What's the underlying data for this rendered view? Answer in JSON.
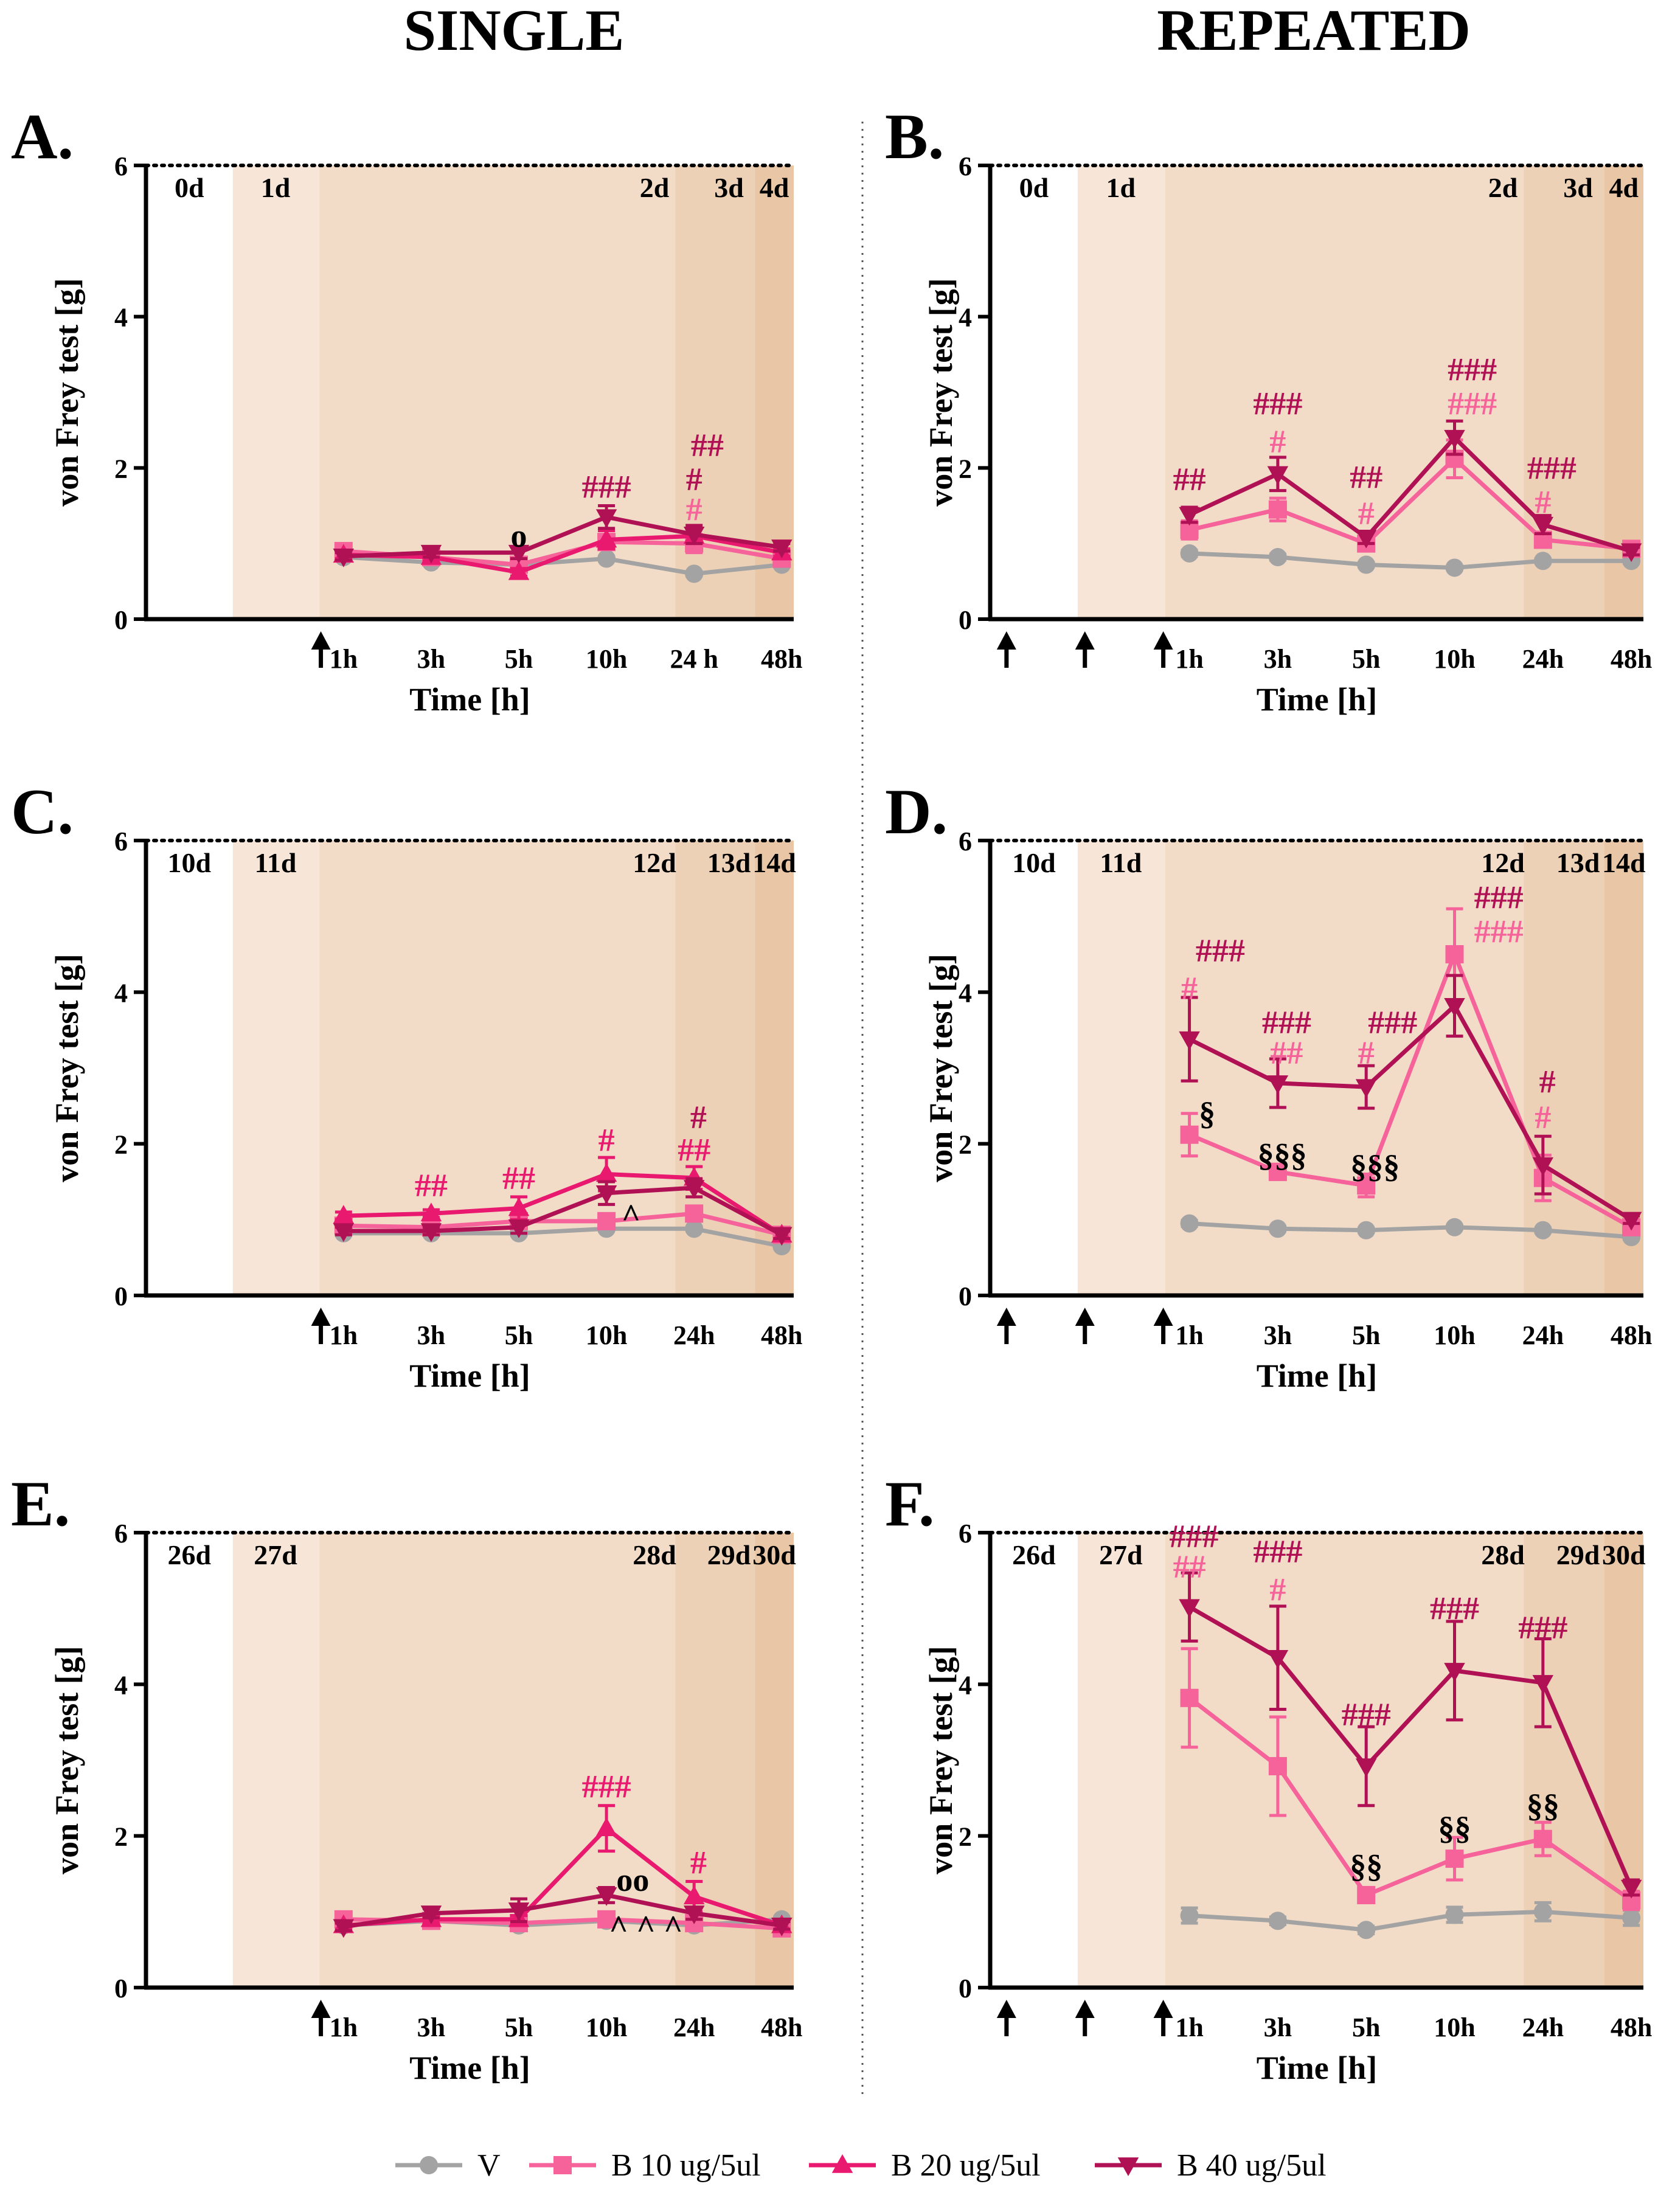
{
  "column_titles": [
    "SINGLE",
    "REPEATED"
  ],
  "colors": {
    "V": "#a3a3a3",
    "B10": "#f5639a",
    "B20": "#e8196e",
    "B40": "#b01155",
    "shade": [
      "#ffffff",
      "#f7e6d7",
      "#f2dcc7",
      "#edd1b6",
      "#e9c6a5"
    ],
    "axis": "#000000"
  },
  "legend": [
    {
      "key": "V",
      "label": "V",
      "marker": "circle"
    },
    {
      "key": "B10",
      "label": "B 10 ug/5ul",
      "marker": "square"
    },
    {
      "key": "B20",
      "label": "B 20 ug/5ul",
      "marker": "triangle-up"
    },
    {
      "key": "B40",
      "label": "B 40 ug/5ul",
      "marker": "triangle-down"
    }
  ],
  "chart_data": [
    {
      "panel": "A.",
      "column": "SINGLE",
      "type": "line",
      "xlabel": "Time [h]",
      "ylabel": "von Frey test [g]",
      "ylim": [
        0,
        6
      ],
      "yticks": [
        "0",
        "2",
        "4",
        "6"
      ],
      "categories": [
        "1h",
        "3h",
        "5h",
        "10h",
        "24 h",
        "48h"
      ],
      "day_labels": [
        "0d",
        "1d",
        "2d",
        "3d",
        "4d"
      ],
      "injections": 1,
      "series": [
        {
          "name": "V",
          "values": [
            0.82,
            0.75,
            0.72,
            0.8,
            0.6,
            0.72
          ],
          "err": [
            0.04,
            0.03,
            0.03,
            0.03,
            0.03,
            0.03
          ]
        },
        {
          "name": "B 10 ug/5ul",
          "values": [
            0.9,
            0.82,
            0.72,
            1.02,
            1.0,
            0.8
          ],
          "err": [
            0.05,
            0.05,
            0.05,
            0.1,
            0.12,
            0.05
          ]
        },
        {
          "name": "B 20 ug/5ul",
          "values": [
            0.85,
            0.82,
            0.62,
            1.05,
            1.1,
            0.88
          ],
          "err": [
            0.05,
            0.05,
            0.05,
            0.12,
            0.1,
            0.05
          ]
        },
        {
          "name": "B 40 ug/5ul",
          "values": [
            0.83,
            0.88,
            0.88,
            1.35,
            1.12,
            0.95
          ],
          "err": [
            0.05,
            0.06,
            0.08,
            0.15,
            0.12,
            0.05
          ]
        }
      ],
      "annotations": [
        {
          "text": "o",
          "x": 2,
          "y": 1.1,
          "color": "#000000"
        },
        {
          "text": "###",
          "x": 3,
          "y": 1.75,
          "color": "#b01155"
        },
        {
          "text": "#",
          "x": 4,
          "y": 1.45,
          "color": "#f5639a"
        },
        {
          "text": "#",
          "x": 4,
          "y": 1.85,
          "color": "#b01155"
        },
        {
          "text": "##",
          "x": 4.15,
          "y": 2.3,
          "color": "#b01155"
        }
      ]
    },
    {
      "panel": "B.",
      "column": "REPEATED",
      "type": "line",
      "xlabel": "Time [h]",
      "ylabel": "von Frey test [g]",
      "ylim": [
        0,
        6
      ],
      "yticks": [
        "0",
        "2",
        "4",
        "6"
      ],
      "categories": [
        "1h",
        "3h",
        "5h",
        "10h",
        "24h",
        "48h"
      ],
      "day_labels": [
        "0d",
        "1d",
        "2d",
        "3d",
        "4d"
      ],
      "injections": 3,
      "series": [
        {
          "name": "V",
          "values": [
            0.87,
            0.82,
            0.72,
            0.68,
            0.77,
            0.77
          ],
          "err": [
            0.04,
            0.04,
            0.03,
            0.03,
            0.03,
            0.03
          ]
        },
        {
          "name": "B 10 ug/5ul",
          "values": [
            1.18,
            1.45,
            1.0,
            2.12,
            1.05,
            0.93
          ],
          "err": [
            0.12,
            0.15,
            0.08,
            0.25,
            0.1,
            0.05
          ]
        },
        {
          "name": "B 40 ug/5ul",
          "values": [
            1.38,
            1.92,
            1.08,
            2.4,
            1.25,
            0.9
          ],
          "err": [
            0.1,
            0.22,
            0.08,
            0.22,
            0.12,
            0.05
          ]
        }
      ],
      "annotations": [
        {
          "text": "##",
          "x": 0,
          "y": 1.85,
          "color": "#b01155"
        },
        {
          "text": "#",
          "x": 1,
          "y": 2.35,
          "color": "#f5639a"
        },
        {
          "text": "###",
          "x": 1,
          "y": 2.85,
          "color": "#b01155"
        },
        {
          "text": "#",
          "x": 2,
          "y": 1.4,
          "color": "#f5639a"
        },
        {
          "text": "##",
          "x": 2,
          "y": 1.88,
          "color": "#b01155"
        },
        {
          "text": "###",
          "x": 3.2,
          "y": 2.85,
          "color": "#f5639a"
        },
        {
          "text": "###",
          "x": 3.2,
          "y": 3.3,
          "color": "#b01155"
        },
        {
          "text": "#",
          "x": 4,
          "y": 1.55,
          "color": "#f5639a"
        },
        {
          "text": "###",
          "x": 4.1,
          "y": 2.0,
          "color": "#b01155"
        }
      ]
    },
    {
      "panel": "C.",
      "column": "SINGLE",
      "type": "line",
      "xlabel": "Time [h]",
      "ylabel": "von Frey test [g]",
      "ylim": [
        0,
        6
      ],
      "yticks": [
        "0",
        "2",
        "4",
        "6"
      ],
      "categories": [
        "1h",
        "3h",
        "5h",
        "10h",
        "24h",
        "48h"
      ],
      "day_labels": [
        "10d",
        "11d",
        "12d",
        "13d",
        "14d"
      ],
      "injections": 1,
      "series": [
        {
          "name": "V",
          "values": [
            0.82,
            0.82,
            0.82,
            0.88,
            0.88,
            0.65
          ],
          "err": [
            0.03,
            0.03,
            0.03,
            0.03,
            0.03,
            0.03
          ]
        },
        {
          "name": "B 10 ug/5ul",
          "values": [
            0.92,
            0.9,
            0.98,
            0.98,
            1.08,
            0.8
          ],
          "err": [
            0.05,
            0.05,
            0.08,
            0.08,
            0.08,
            0.05
          ]
        },
        {
          "name": "B 20 ug/5ul",
          "values": [
            1.05,
            1.08,
            1.15,
            1.6,
            1.55,
            0.8
          ],
          "err": [
            0.05,
            0.05,
            0.15,
            0.22,
            0.15,
            0.05
          ]
        },
        {
          "name": "B 40 ug/5ul",
          "values": [
            0.85,
            0.85,
            0.9,
            1.35,
            1.42,
            0.8
          ],
          "err": [
            0.05,
            0.05,
            0.08,
            0.15,
            0.12,
            0.05
          ]
        }
      ],
      "annotations": [
        {
          "text": "##",
          "x": 1,
          "y": 1.45,
          "color": "#e8196e"
        },
        {
          "text": "##",
          "x": 2,
          "y": 1.55,
          "color": "#e8196e"
        },
        {
          "text": "#",
          "x": 3,
          "y": 2.05,
          "color": "#e8196e"
        },
        {
          "text": "^",
          "x": 3.28,
          "y": 1.05,
          "color": "#000000"
        },
        {
          "text": "##",
          "x": 4,
          "y": 1.92,
          "color": "#e8196e"
        },
        {
          "text": "#",
          "x": 4.05,
          "y": 2.35,
          "color": "#b01155"
        }
      ]
    },
    {
      "panel": "D.",
      "column": "REPEATED",
      "type": "line",
      "xlabel": "Time [h]",
      "ylabel": "von Frey test [g]",
      "ylim": [
        0,
        6
      ],
      "yticks": [
        "0",
        "2",
        "4",
        "6"
      ],
      "categories": [
        "1h",
        "3h",
        "5h",
        "10h",
        "24h",
        "48h"
      ],
      "day_labels": [
        "10d",
        "11d",
        "12d",
        "13d",
        "14d"
      ],
      "injections": 3,
      "series": [
        {
          "name": "V",
          "values": [
            0.95,
            0.88,
            0.86,
            0.9,
            0.86,
            0.77
          ],
          "err": [
            0.04,
            0.03,
            0.03,
            0.03,
            0.03,
            0.03
          ]
        },
        {
          "name": "B 10 ug/5ul",
          "values": [
            2.12,
            1.63,
            1.45,
            4.5,
            1.55,
            0.9
          ],
          "err": [
            0.28,
            0.1,
            0.15,
            0.6,
            0.3,
            0.05
          ]
        },
        {
          "name": "B 40 ug/5ul",
          "values": [
            3.38,
            2.8,
            2.75,
            3.82,
            1.72,
            1.0
          ],
          "err": [
            0.55,
            0.32,
            0.28,
            0.4,
            0.38,
            0.05
          ]
        }
      ],
      "annotations": [
        {
          "text": "#",
          "x": 0,
          "y": 4.05,
          "color": "#f5639a"
        },
        {
          "text": "###",
          "x": 0.35,
          "y": 4.55,
          "color": "#b01155"
        },
        {
          "text": "§",
          "x": 0.2,
          "y": 2.4,
          "color": "#000000"
        },
        {
          "text": "##",
          "x": 1.1,
          "y": 3.2,
          "color": "#f5639a"
        },
        {
          "text": "###",
          "x": 1.1,
          "y": 3.6,
          "color": "#b01155"
        },
        {
          "text": "§§§",
          "x": 1.05,
          "y": 1.85,
          "color": "#000000"
        },
        {
          "text": "#",
          "x": 2,
          "y": 3.2,
          "color": "#f5639a"
        },
        {
          "text": "###",
          "x": 2.3,
          "y": 3.6,
          "color": "#b01155"
        },
        {
          "text": "§§§",
          "x": 2.1,
          "y": 1.7,
          "color": "#000000"
        },
        {
          "text": "###",
          "x": 3.5,
          "y": 4.8,
          "color": "#f5639a"
        },
        {
          "text": "###",
          "x": 3.5,
          "y": 5.25,
          "color": "#b01155"
        },
        {
          "text": "#",
          "x": 4,
          "y": 2.35,
          "color": "#f5639a"
        },
        {
          "text": "#",
          "x": 4.05,
          "y": 2.82,
          "color": "#b01155"
        }
      ]
    },
    {
      "panel": "E.",
      "column": "SINGLE",
      "type": "line",
      "xlabel": "Time [h]",
      "ylabel": "von Frey test [g]",
      "ylim": [
        0,
        6
      ],
      "yticks": [
        "0",
        "2",
        "4",
        "6"
      ],
      "categories": [
        "1h",
        "3h",
        "5h",
        "10h",
        "24h",
        "48h"
      ],
      "day_labels": [
        "26d",
        "27d",
        "28d",
        "29d",
        "30d"
      ],
      "injections": 1,
      "series": [
        {
          "name": "V",
          "values": [
            0.82,
            0.88,
            0.82,
            0.88,
            0.82,
            0.9
          ],
          "err": [
            0.03,
            0.03,
            0.03,
            0.03,
            0.03,
            0.03
          ]
        },
        {
          "name": "B 10 ug/5ul",
          "values": [
            0.9,
            0.88,
            0.85,
            0.9,
            0.85,
            0.78
          ],
          "err": [
            0.05,
            0.05,
            0.05,
            0.05,
            0.05,
            0.05
          ]
        },
        {
          "name": "B 20 ug/5ul",
          "values": [
            0.82,
            0.9,
            0.9,
            2.1,
            1.2,
            0.82
          ],
          "err": [
            0.05,
            0.05,
            0.05,
            0.3,
            0.2,
            0.05
          ]
        },
        {
          "name": "B 40 ug/5ul",
          "values": [
            0.8,
            0.98,
            1.02,
            1.22,
            0.98,
            0.82
          ],
          "err": [
            0.05,
            0.06,
            0.15,
            0.1,
            0.08,
            0.05
          ]
        }
      ],
      "annotations": [
        {
          "text": "###",
          "x": 3,
          "y": 2.65,
          "color": "#e8196e"
        },
        {
          "text": "oo",
          "x": 3.3,
          "y": 1.42,
          "color": "#000000"
        },
        {
          "text": "^ ^ ^",
          "x": 3.45,
          "y": 0.8,
          "color": "#000000"
        },
        {
          "text": "#",
          "x": 4.05,
          "y": 1.65,
          "color": "#e8196e"
        }
      ]
    },
    {
      "panel": "F.",
      "column": "REPEATED",
      "type": "line",
      "xlabel": "Time [h]",
      "ylabel": "von Frey test [g]",
      "ylim": [
        0,
        6
      ],
      "yticks": [
        "0",
        "2",
        "4",
        "6"
      ],
      "categories": [
        "1h",
        "3h",
        "5h",
        "10h",
        "24h",
        "48h"
      ],
      "day_labels": [
        "26d",
        "27d",
        "28d",
        "29d",
        "30d"
      ],
      "injections": 3,
      "series": [
        {
          "name": "V",
          "values": [
            0.95,
            0.88,
            0.76,
            0.96,
            1.0,
            0.92
          ],
          "err": [
            0.1,
            0.05,
            0.05,
            0.1,
            0.12,
            0.1
          ]
        },
        {
          "name": "B 10 ug/5ul",
          "values": [
            3.82,
            2.92,
            1.22,
            1.7,
            1.96,
            1.15
          ],
          "err": [
            0.65,
            0.65,
            0.1,
            0.28,
            0.22,
            0.12
          ]
        },
        {
          "name": "B 40 ug/5ul",
          "values": [
            5.02,
            4.35,
            2.92,
            4.18,
            4.02,
            1.32
          ],
          "err": [
            0.45,
            0.68,
            0.52,
            0.65,
            0.58,
            0.1
          ]
        }
      ],
      "annotations": [
        {
          "text": "##",
          "x": 0,
          "y": 5.55,
          "color": "#f5639a"
        },
        {
          "text": "###",
          "x": 0.05,
          "y": 5.95,
          "color": "#b01155"
        },
        {
          "text": "#",
          "x": 1,
          "y": 5.25,
          "color": "#f5639a"
        },
        {
          "text": "###",
          "x": 1,
          "y": 5.75,
          "color": "#b01155"
        },
        {
          "text": "###",
          "x": 2,
          "y": 3.6,
          "color": "#b01155"
        },
        {
          "text": "§§",
          "x": 2,
          "y": 1.6,
          "color": "#000000"
        },
        {
          "text": "###",
          "x": 3,
          "y": 5.0,
          "color": "#b01155"
        },
        {
          "text": "§§",
          "x": 3,
          "y": 2.1,
          "color": "#000000"
        },
        {
          "text": "###",
          "x": 4,
          "y": 4.75,
          "color": "#b01155"
        },
        {
          "text": "§§",
          "x": 4,
          "y": 2.4,
          "color": "#000000"
        }
      ]
    }
  ]
}
